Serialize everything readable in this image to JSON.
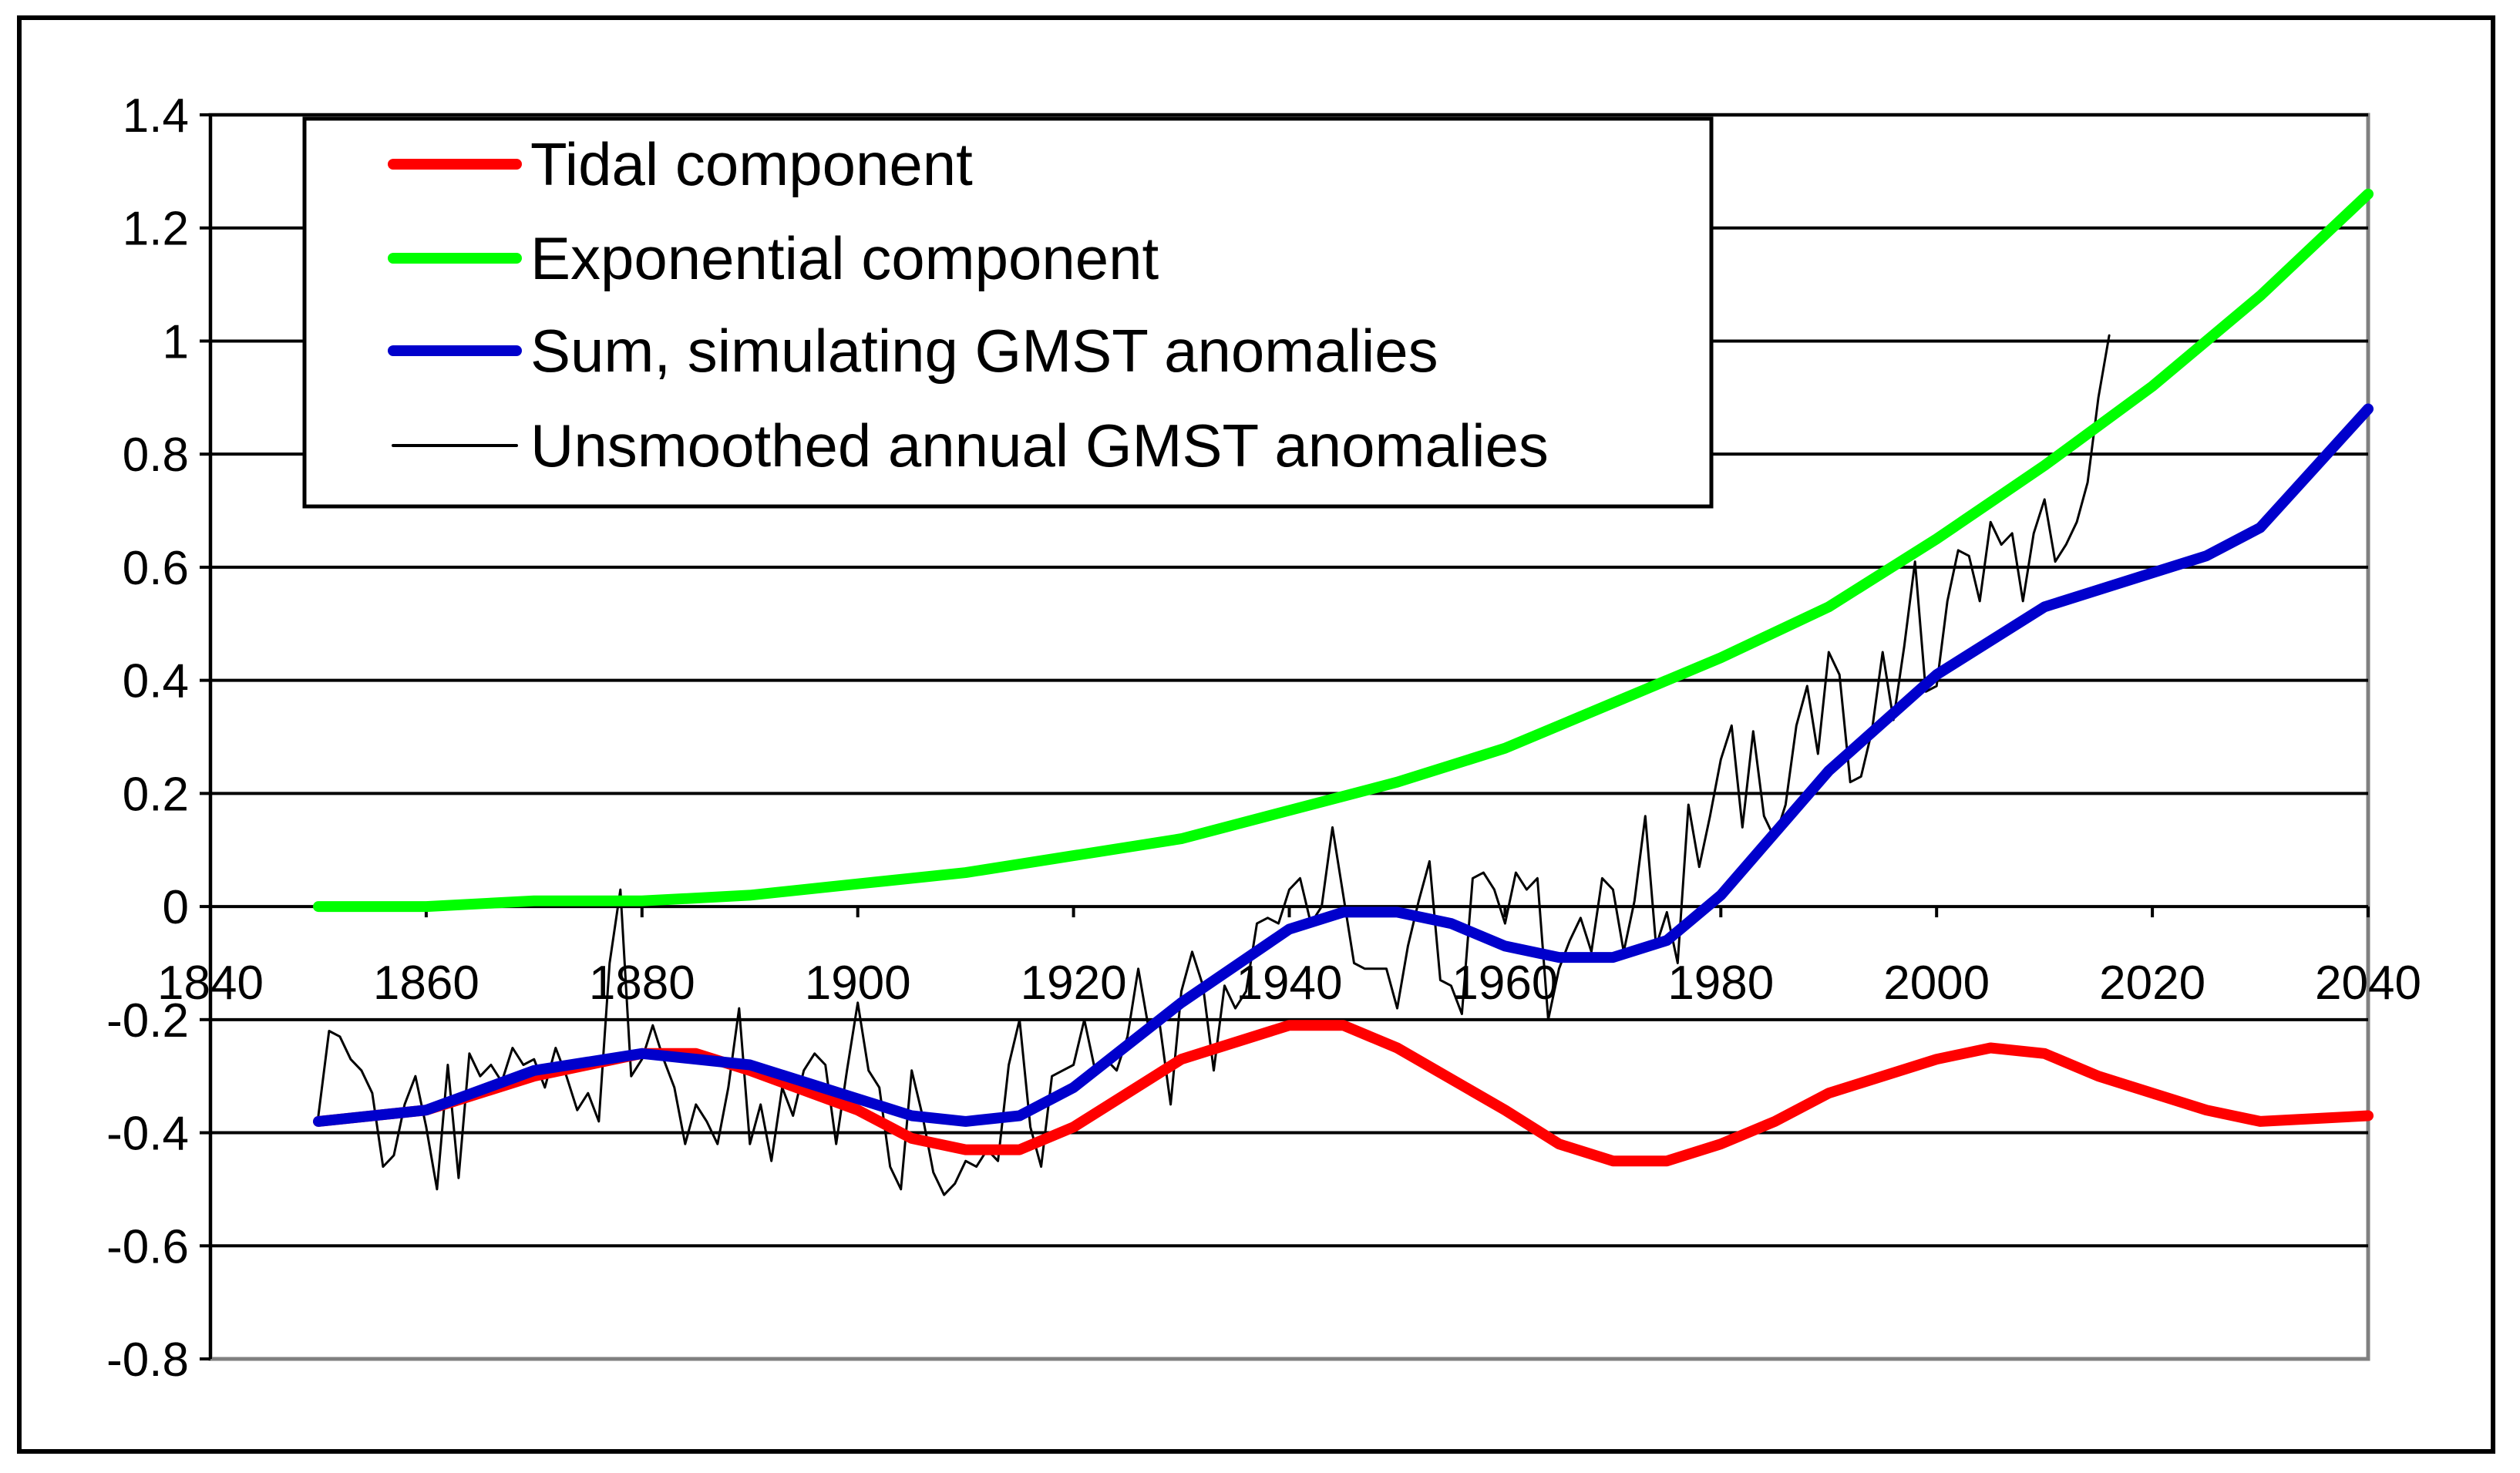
{
  "chart_data": {
    "type": "line",
    "title": "",
    "xlabel": "",
    "ylabel": "",
    "xlim": [
      1840,
      2040
    ],
    "ylim": [
      -0.8,
      1.4
    ],
    "xticks": [
      1840,
      1860,
      1880,
      1900,
      1920,
      1940,
      1960,
      1980,
      2000,
      2020,
      2040
    ],
    "yticks": [
      1.4,
      1.2,
      1,
      0.8,
      0.6,
      0.4,
      0.2,
      0,
      -0.2,
      -0.4,
      -0.6,
      -0.8
    ],
    "xtick_labels": [
      "1840",
      "1860",
      "1880",
      "1900",
      "1920",
      "1940",
      "1960",
      "1980",
      "2000",
      "2020",
      "2040"
    ],
    "ytick_labels": [
      "1.4",
      "1.2",
      "1",
      "0.8",
      "0.6",
      "0.4",
      "0.2",
      "0",
      "-0.2",
      "-0.4",
      "-0.6",
      "-0.8"
    ],
    "grid": "horizontal",
    "legend_position": "top-left",
    "colors": {
      "tidal": "#ff0000",
      "exponential": "#00ff00",
      "sum": "#0000cc",
      "unsmoothed": "#000000",
      "grid": "#000000",
      "plot_border": "#808080"
    },
    "series": [
      {
        "name": "Tidal component",
        "key": "tidal",
        "x": [
          1850,
          1860,
          1870,
          1875,
          1880,
          1885,
          1890,
          1900,
          1905,
          1910,
          1915,
          1920,
          1925,
          1930,
          1940,
          1945,
          1950,
          1960,
          1965,
          1970,
          1975,
          1980,
          1985,
          1990,
          2000,
          2005,
          2010,
          2015,
          2020,
          2025,
          2030,
          2040
        ],
        "values": [
          -0.38,
          -0.36,
          -0.3,
          -0.28,
          -0.26,
          -0.26,
          -0.29,
          -0.36,
          -0.41,
          -0.43,
          -0.43,
          -0.39,
          -0.33,
          -0.27,
          -0.21,
          -0.21,
          -0.25,
          -0.36,
          -0.42,
          -0.45,
          -0.45,
          -0.42,
          -0.38,
          -0.33,
          -0.27,
          -0.25,
          -0.26,
          -0.3,
          -0.33,
          -0.36,
          -0.38,
          -0.37
        ]
      },
      {
        "name": "Exponential component",
        "key": "exponential",
        "x": [
          1850,
          1860,
          1870,
          1880,
          1890,
          1900,
          1910,
          1920,
          1930,
          1940,
          1950,
          1960,
          1970,
          1980,
          1990,
          2000,
          2010,
          2020,
          2030,
          2040
        ],
        "values": [
          0.0,
          0.0,
          0.01,
          0.01,
          0.02,
          0.04,
          0.06,
          0.09,
          0.12,
          0.17,
          0.22,
          0.28,
          0.36,
          0.44,
          0.53,
          0.65,
          0.78,
          0.92,
          1.08,
          1.26
        ]
      },
      {
        "name": "Sum, simulating GMST anomalies",
        "key": "sum",
        "x": [
          1850,
          1860,
          1870,
          1880,
          1890,
          1900,
          1905,
          1910,
          1915,
          1920,
          1930,
          1940,
          1945,
          1950,
          1955,
          1960,
          1965,
          1970,
          1975,
          1980,
          1990,
          2000,
          2010,
          2020,
          2025,
          2030,
          2040
        ],
        "values": [
          -0.38,
          -0.36,
          -0.29,
          -0.26,
          -0.28,
          -0.34,
          -0.37,
          -0.38,
          -0.37,
          -0.32,
          -0.17,
          -0.04,
          -0.01,
          -0.01,
          -0.03,
          -0.07,
          -0.09,
          -0.09,
          -0.06,
          0.02,
          0.24,
          0.41,
          0.53,
          0.59,
          0.62,
          0.67,
          0.88
        ]
      },
      {
        "name": "Unsmoothed annual GMST anomalies",
        "key": "unsmoothed",
        "x": [
          1850,
          1851,
          1852,
          1853,
          1854,
          1855,
          1856,
          1857,
          1858,
          1859,
          1860,
          1861,
          1862,
          1863,
          1864,
          1865,
          1866,
          1867,
          1868,
          1869,
          1870,
          1871,
          1872,
          1873,
          1874,
          1875,
          1876,
          1877,
          1878,
          1879,
          1880,
          1881,
          1882,
          1883,
          1884,
          1885,
          1886,
          1887,
          1888,
          1889,
          1890,
          1891,
          1892,
          1893,
          1894,
          1895,
          1896,
          1897,
          1898,
          1899,
          1900,
          1901,
          1902,
          1903,
          1904,
          1905,
          1906,
          1907,
          1908,
          1909,
          1910,
          1911,
          1912,
          1913,
          1914,
          1915,
          1916,
          1917,
          1918,
          1919,
          1920,
          1921,
          1922,
          1923,
          1924,
          1925,
          1926,
          1927,
          1928,
          1929,
          1930,
          1931,
          1932,
          1933,
          1934,
          1935,
          1936,
          1937,
          1938,
          1939,
          1940,
          1941,
          1942,
          1943,
          1944,
          1945,
          1946,
          1947,
          1948,
          1949,
          1950,
          1951,
          1952,
          1953,
          1954,
          1955,
          1956,
          1957,
          1958,
          1959,
          1960,
          1961,
          1962,
          1963,
          1964,
          1965,
          1966,
          1967,
          1968,
          1969,
          1970,
          1971,
          1972,
          1973,
          1974,
          1975,
          1976,
          1977,
          1978,
          1979,
          1980,
          1981,
          1982,
          1983,
          1984,
          1985,
          1986,
          1987,
          1988,
          1989,
          1990,
          1991,
          1992,
          1993,
          1994,
          1995,
          1996,
          1997,
          1998,
          1999,
          2000,
          2001,
          2002,
          2003,
          2004,
          2005,
          2006,
          2007,
          2008,
          2009,
          2010,
          2011,
          2012,
          2013,
          2014,
          2015,
          2016
        ],
        "values": [
          -0.37,
          -0.22,
          -0.23,
          -0.27,
          -0.29,
          -0.33,
          -0.46,
          -0.44,
          -0.35,
          -0.3,
          -0.39,
          -0.5,
          -0.28,
          -0.48,
          -0.26,
          -0.3,
          -0.28,
          -0.31,
          -0.25,
          -0.28,
          -0.27,
          -0.32,
          -0.25,
          -0.3,
          -0.36,
          -0.33,
          -0.38,
          -0.1,
          0.03,
          -0.3,
          -0.27,
          -0.21,
          -0.27,
          -0.32,
          -0.42,
          -0.35,
          -0.38,
          -0.42,
          -0.32,
          -0.18,
          -0.42,
          -0.35,
          -0.45,
          -0.32,
          -0.37,
          -0.29,
          -0.26,
          -0.28,
          -0.42,
          -0.29,
          -0.17,
          -0.29,
          -0.32,
          -0.46,
          -0.5,
          -0.29,
          -0.37,
          -0.47,
          -0.51,
          -0.49,
          -0.45,
          -0.46,
          -0.43,
          -0.45,
          -0.28,
          -0.2,
          -0.39,
          -0.46,
          -0.3,
          -0.29,
          -0.28,
          -0.2,
          -0.29,
          -0.27,
          -0.29,
          -0.23,
          -0.11,
          -0.22,
          -0.21,
          -0.35,
          -0.15,
          -0.08,
          -0.14,
          -0.29,
          -0.14,
          -0.18,
          -0.15,
          -0.03,
          -0.02,
          -0.03,
          0.03,
          0.05,
          -0.03,
          0.0,
          0.14,
          0.02,
          -0.1,
          -0.11,
          -0.11,
          -0.11,
          -0.18,
          -0.07,
          0.01,
          0.08,
          -0.13,
          -0.14,
          -0.19,
          0.05,
          0.06,
          0.03,
          -0.03,
          0.06,
          0.03,
          0.05,
          -0.2,
          -0.11,
          -0.06,
          -0.02,
          -0.08,
          0.05,
          0.03,
          -0.08,
          0.01,
          0.16,
          -0.07,
          -0.01,
          -0.1,
          0.18,
          0.07,
          0.16,
          0.26,
          0.32,
          0.14,
          0.31,
          0.16,
          0.12,
          0.18,
          0.32,
          0.39,
          0.27,
          0.45,
          0.41,
          0.22,
          0.23,
          0.31,
          0.45,
          0.33,
          0.46,
          0.61,
          0.38,
          0.39,
          0.54,
          0.63,
          0.62,
          0.54,
          0.68,
          0.64,
          0.66,
          0.54,
          0.66,
          0.72,
          0.61,
          0.64,
          0.68,
          0.75,
          0.9,
          1.01
        ]
      }
    ]
  }
}
